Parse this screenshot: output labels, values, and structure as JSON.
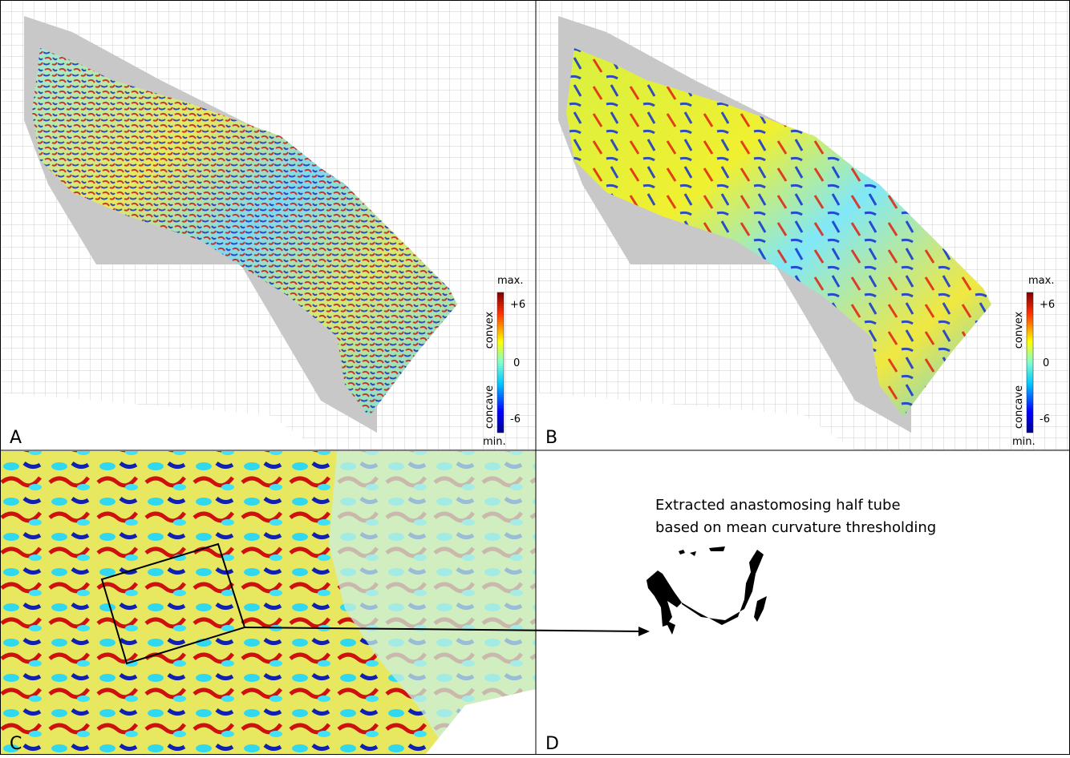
{
  "panels": [
    {
      "label": "A",
      "colorbar": {
        "top": "max.",
        "high": "+6",
        "mid": "0",
        "low": "-6",
        "bottom": "min.",
        "upper_axis": "convex",
        "lower_axis": "concave"
      }
    },
    {
      "label": "B",
      "colorbar": {
        "top": "max.",
        "high": "+6",
        "mid": "0",
        "low": "-6",
        "bottom": "min.",
        "upper_axis": "convex",
        "lower_axis": "concave"
      }
    },
    {
      "label": "C"
    },
    {
      "label": "D",
      "caption": [
        "Extracted anastomosing half tube",
        "based on mean curvature thresholding"
      ]
    }
  ]
}
